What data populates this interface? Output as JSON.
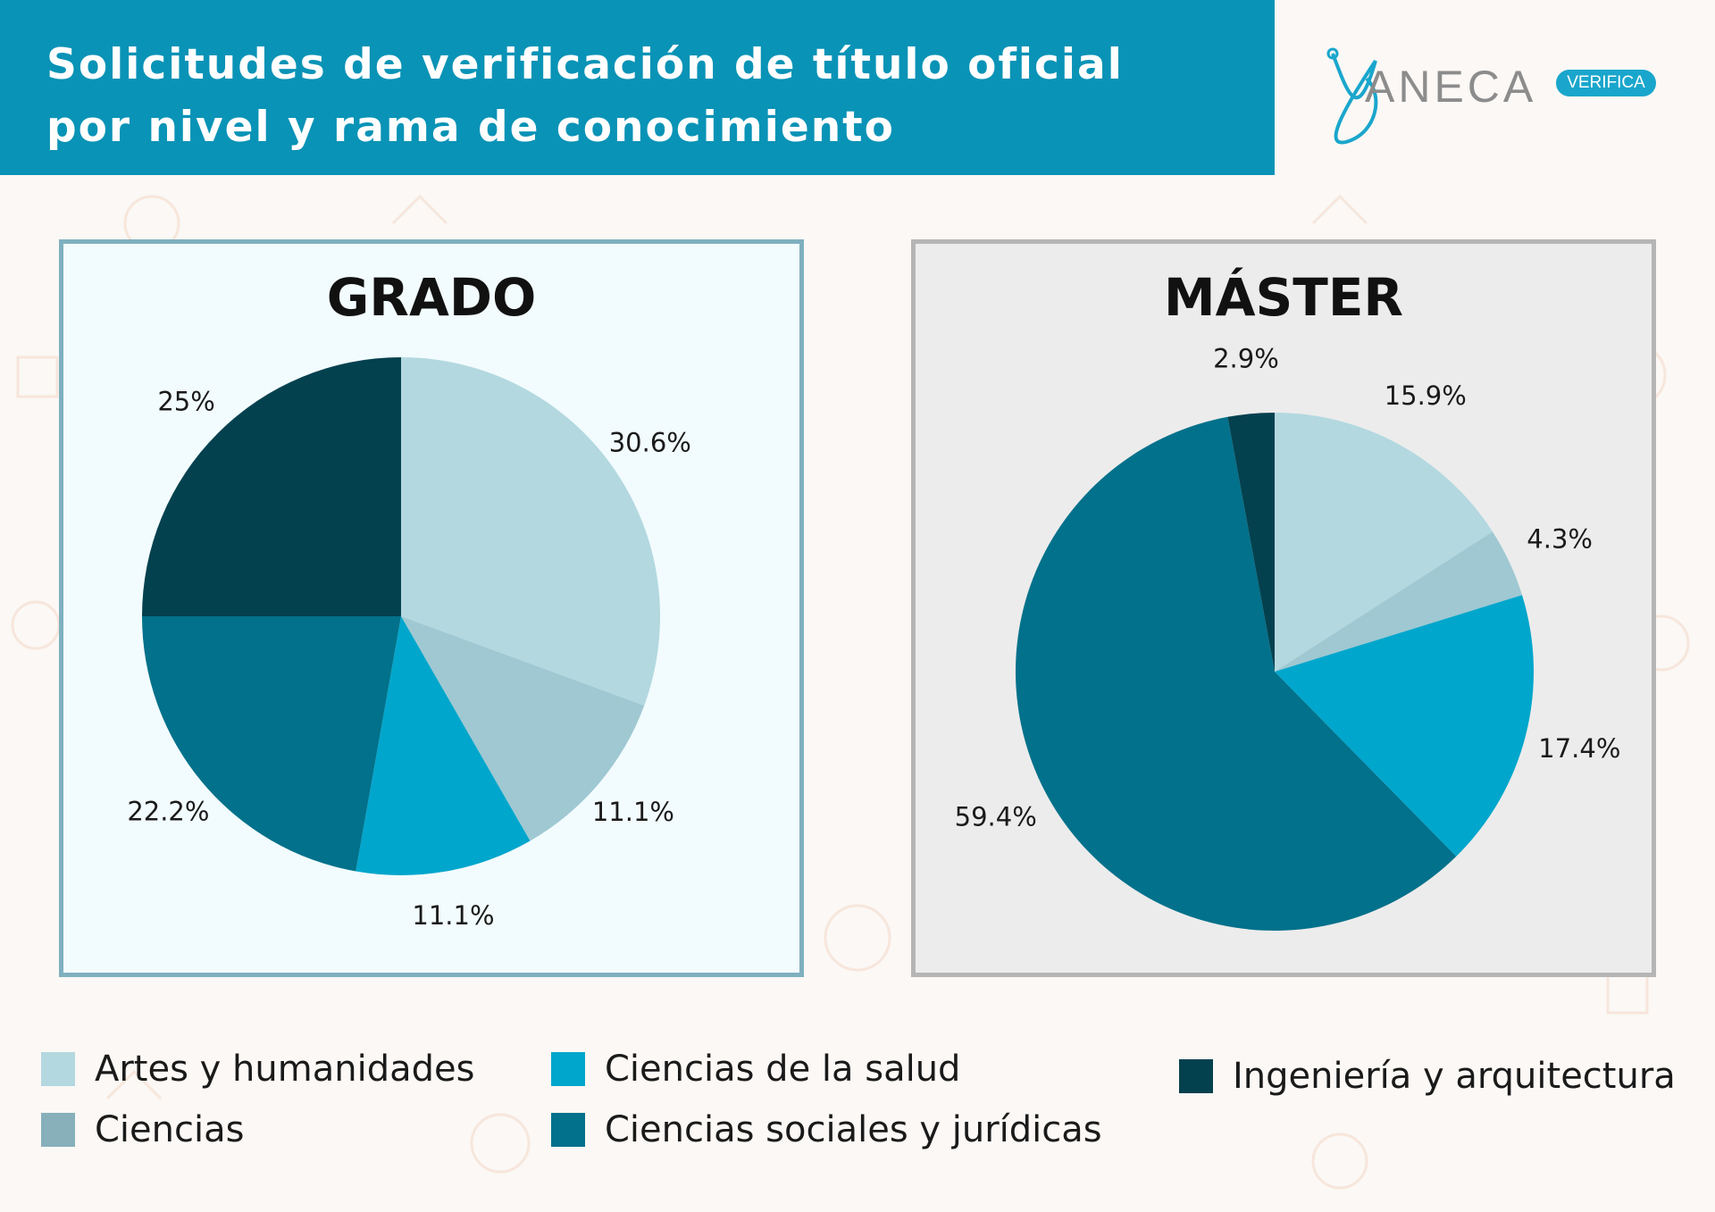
{
  "header": {
    "title_line1": "Solicitudes de verificación de título oficial",
    "title_line2": "por nivel y rama de conocimiento"
  },
  "logo": {
    "brand": "ANECA",
    "badge": "VERIFICA"
  },
  "colors": {
    "artes": "#b3d8e0",
    "ciencias": "#9fc8d2",
    "salud": "#00a6cc",
    "sociales": "#02718b",
    "ingenieria": "#04414f",
    "legend_ciencias": "#87b0bb"
  },
  "chart_data": [
    {
      "type": "pie",
      "title": "GRADO",
      "categories": [
        "Artes y humanidades",
        "Ciencias",
        "Ciencias de la salud",
        "Ciencias sociales y jurídicas",
        "Ingeniería y arquitectura"
      ],
      "values": [
        30.6,
        11.1,
        11.1,
        22.2,
        25
      ],
      "labels": [
        "30.6%",
        "11.1%",
        "11.1%",
        "22.2%",
        "25%"
      ]
    },
    {
      "type": "pie",
      "title": "MÁSTER",
      "categories": [
        "Artes y humanidades",
        "Ciencias",
        "Ciencias de la salud",
        "Ciencias sociales y jurídicas",
        "Ingeniería y arquitectura"
      ],
      "values": [
        15.9,
        4.3,
        17.4,
        59.4,
        2.9
      ],
      "labels": [
        "15.9%",
        "4.3%",
        "17.4%",
        "59.4%",
        "2.9%"
      ]
    }
  ],
  "legend": [
    {
      "label": "Artes y humanidades",
      "color": "#b3d8e0"
    },
    {
      "label": "Ciencias",
      "color": "#87b0bb"
    },
    {
      "label": "Ciencias de la salud",
      "color": "#00a6cc"
    },
    {
      "label": "Ciencias sociales y jurídicas",
      "color": "#02718b"
    },
    {
      "label": "Ingeniería y arquitectura",
      "color": "#04414f"
    }
  ]
}
